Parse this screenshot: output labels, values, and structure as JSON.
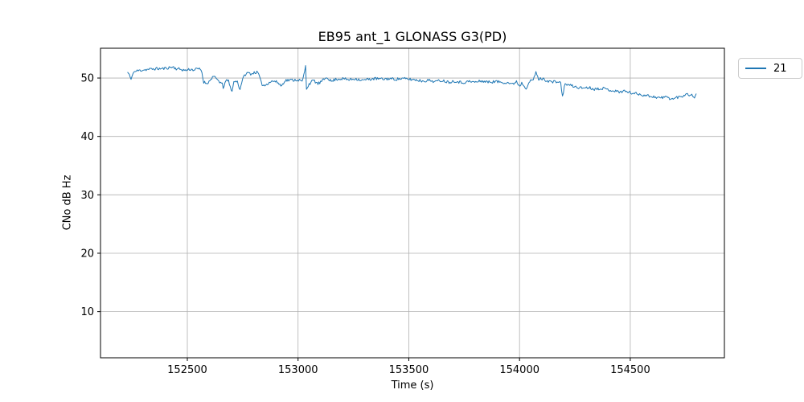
{
  "chart_data": {
    "type": "line",
    "title": "EB95 ant_1 GLONASS G3(PD)",
    "xlabel": "Time (s)",
    "ylabel": "CNo dB Hz",
    "x_ticks": [
      152500,
      153000,
      153500,
      154000,
      154500
    ],
    "y_ticks": [
      10,
      20,
      30,
      40,
      50
    ],
    "xlim": [
      152108,
      154925
    ],
    "ylim": [
      2.1,
      55.1
    ],
    "grid": true,
    "grid_color": "#b0b0b0",
    "spine_color": "#000000",
    "background_color": "#ffffff",
    "legend_position": "outside upper right",
    "series": [
      {
        "name": "21",
        "color": "#1f77b4",
        "line_width": 1,
        "noise_amplitude": 0.25,
        "sample_step_s": 4,
        "seed": 11,
        "keypoints": [
          [
            152230,
            51.0
          ],
          [
            152238,
            50.6
          ],
          [
            152246,
            49.6
          ],
          [
            152254,
            50.9
          ],
          [
            152270,
            51.2
          ],
          [
            152300,
            51.4
          ],
          [
            152330,
            51.5
          ],
          [
            152360,
            51.6
          ],
          [
            152390,
            51.6
          ],
          [
            152420,
            51.8
          ],
          [
            152435,
            51.9
          ],
          [
            152450,
            51.6
          ],
          [
            152470,
            51.5
          ],
          [
            152490,
            51.3
          ],
          [
            152510,
            51.5
          ],
          [
            152530,
            51.4
          ],
          [
            152550,
            51.6
          ],
          [
            152565,
            51.3
          ],
          [
            152572,
            49.4
          ],
          [
            152585,
            49.1
          ],
          [
            152600,
            49.4
          ],
          [
            152615,
            50.3
          ],
          [
            152630,
            49.9
          ],
          [
            152645,
            49.4
          ],
          [
            152658,
            48.9
          ],
          [
            152662,
            48.1
          ],
          [
            152670,
            49.4
          ],
          [
            152685,
            49.6
          ],
          [
            152700,
            47.6
          ],
          [
            152710,
            49.3
          ],
          [
            152725,
            49.5
          ],
          [
            152738,
            48.0
          ],
          [
            152745,
            49.3
          ],
          [
            152760,
            50.6
          ],
          [
            152775,
            50.9
          ],
          [
            152790,
            50.7
          ],
          [
            152805,
            51.0
          ],
          [
            152820,
            50.9
          ],
          [
            152835,
            49.0
          ],
          [
            152850,
            48.7
          ],
          [
            152870,
            49.3
          ],
          [
            152890,
            49.5
          ],
          [
            152910,
            49.2
          ],
          [
            152925,
            48.6
          ],
          [
            152940,
            49.6
          ],
          [
            153000,
            49.7
          ],
          [
            153020,
            49.4
          ],
          [
            153034,
            52.0
          ],
          [
            153038,
            48.2
          ],
          [
            153050,
            49.0
          ],
          [
            153070,
            49.6
          ],
          [
            153090,
            49.0
          ],
          [
            153110,
            49.5
          ],
          [
            153130,
            50.2
          ],
          [
            153150,
            49.4
          ],
          [
            153170,
            49.8
          ],
          [
            153200,
            49.9
          ],
          [
            153230,
            49.7
          ],
          [
            153260,
            49.9
          ],
          [
            153290,
            49.6
          ],
          [
            153320,
            49.8
          ],
          [
            153350,
            49.9
          ],
          [
            153380,
            49.8
          ],
          [
            153410,
            49.9
          ],
          [
            153440,
            49.8
          ],
          [
            153470,
            49.9
          ],
          [
            153500,
            49.8
          ],
          [
            153530,
            49.7
          ],
          [
            153560,
            49.5
          ],
          [
            153590,
            49.6
          ],
          [
            153620,
            49.4
          ],
          [
            153650,
            49.6
          ],
          [
            153680,
            49.3
          ],
          [
            153710,
            49.5
          ],
          [
            153740,
            49.2
          ],
          [
            153770,
            49.4
          ],
          [
            153800,
            49.3
          ],
          [
            153830,
            49.5
          ],
          [
            153860,
            49.3
          ],
          [
            153890,
            49.4
          ],
          [
            153920,
            49.3
          ],
          [
            153950,
            49.2
          ],
          [
            153970,
            48.9
          ],
          [
            153985,
            49.5
          ],
          [
            154000,
            48.6
          ],
          [
            154010,
            49.2
          ],
          [
            154030,
            48.3
          ],
          [
            154045,
            49.4
          ],
          [
            154060,
            49.6
          ],
          [
            154075,
            51.0
          ],
          [
            154085,
            49.8
          ],
          [
            154100,
            49.9
          ],
          [
            154115,
            49.7
          ],
          [
            154130,
            49.5
          ],
          [
            154150,
            49.3
          ],
          [
            154170,
            49.4
          ],
          [
            154185,
            49.2
          ],
          [
            154195,
            46.8
          ],
          [
            154205,
            49.0
          ],
          [
            154225,
            48.8
          ],
          [
            154250,
            48.5
          ],
          [
            154280,
            48.3
          ],
          [
            154310,
            48.4
          ],
          [
            154340,
            48.1
          ],
          [
            154370,
            48.3
          ],
          [
            154400,
            48.0
          ],
          [
            154430,
            47.8
          ],
          [
            154449,
            47.6
          ],
          [
            154470,
            47.8
          ],
          [
            154500,
            47.5
          ],
          [
            154530,
            47.3
          ],
          [
            154560,
            47.1
          ],
          [
            154590,
            46.9
          ],
          [
            154620,
            46.7
          ],
          [
            154640,
            46.6
          ],
          [
            154660,
            46.8
          ],
          [
            154680,
            46.5
          ],
          [
            154696,
            46.4
          ],
          [
            154710,
            46.7
          ],
          [
            154730,
            46.8
          ],
          [
            154745,
            47.1
          ],
          [
            154758,
            47.5
          ],
          [
            154768,
            46.9
          ],
          [
            154780,
            47.1
          ],
          [
            154790,
            46.8
          ],
          [
            154798,
            47.1
          ]
        ]
      }
    ]
  },
  "legend": {
    "entries": [
      {
        "label": "21",
        "color": "#1f77b4"
      }
    ]
  }
}
